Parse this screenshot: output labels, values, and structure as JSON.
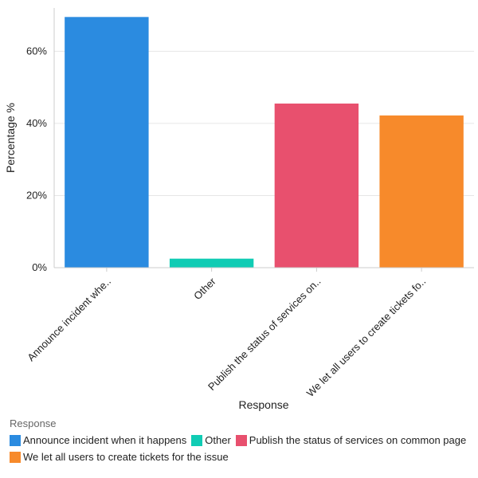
{
  "chart_data": {
    "type": "bar",
    "categories": [
      "Announce incident whe..",
      "Other",
      "Publish the status of services on..",
      "We let all users to create tickets fo.."
    ],
    "values": [
      69.5,
      2.5,
      45.5,
      42.2
    ],
    "colors": [
      "#2b8be0",
      "#10ccb4",
      "#e8506e",
      "#f78a2b"
    ],
    "xlabel": "Response",
    "ylabel": "Percentage %",
    "ylim": [
      0,
      72
    ],
    "yticks": [
      0,
      20,
      40,
      60
    ],
    "ytick_labels": [
      "0%",
      "20%",
      "40%",
      "60%"
    ],
    "grid": true,
    "legend": {
      "title": "Response",
      "placement": "bottom",
      "entries": [
        "Announce incident when it happens",
        "Other",
        "Publish the status of services on common page",
        "We let all users to create tickets for the issue"
      ]
    }
  }
}
